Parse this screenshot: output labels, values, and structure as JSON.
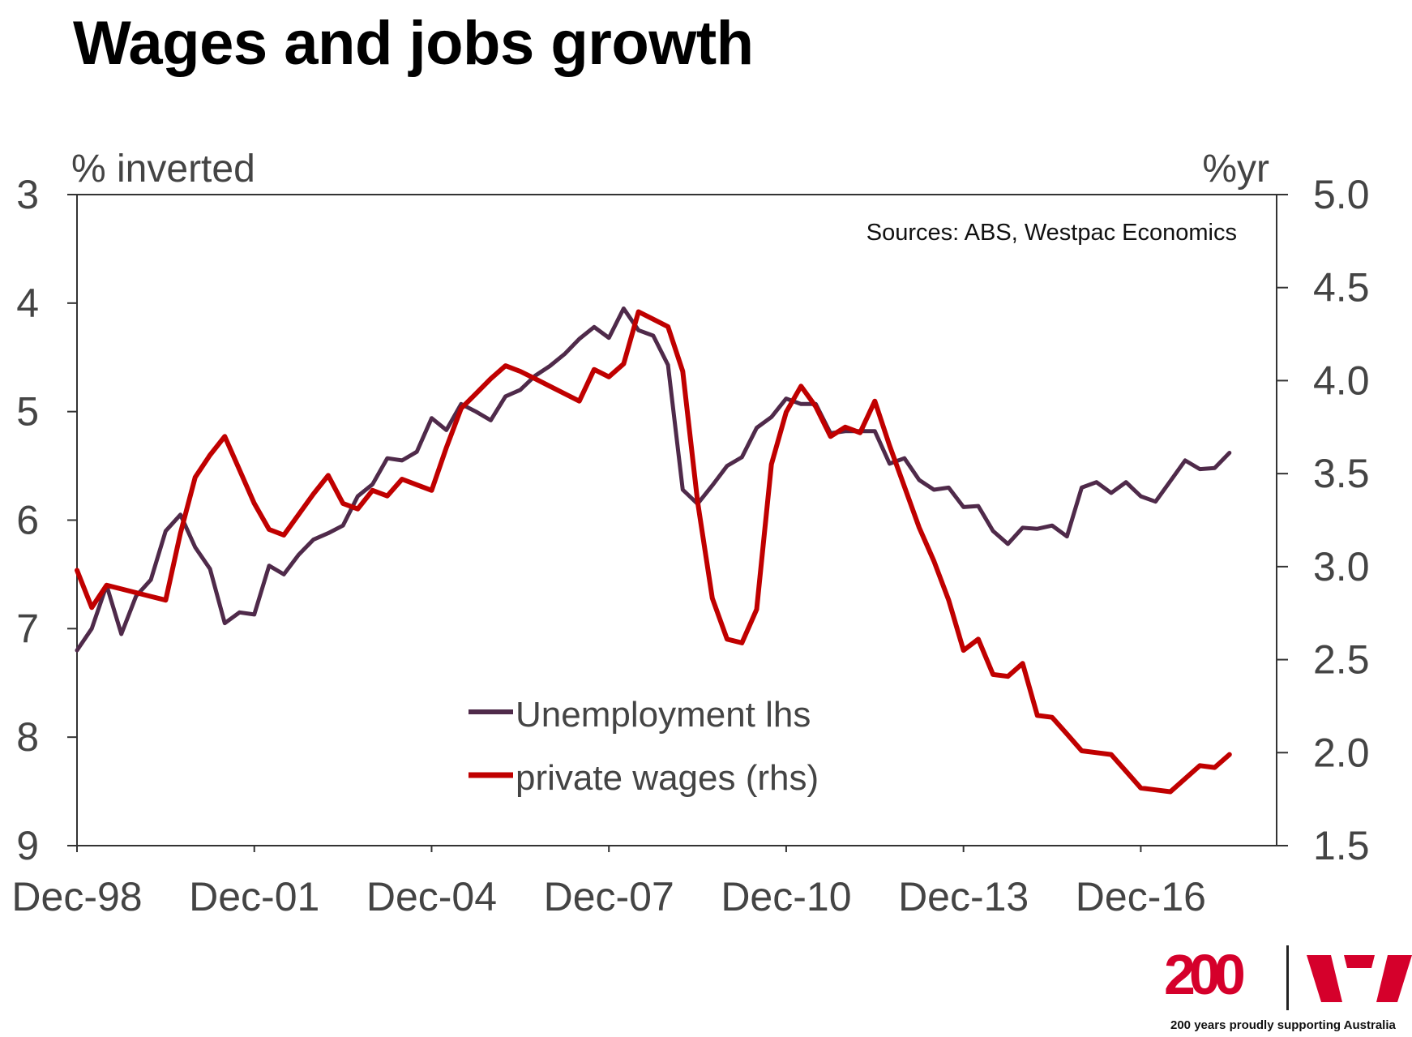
{
  "slide": {
    "title": "Wages and jobs growth",
    "sources": "Sources: ABS, Westpac Economics"
  },
  "branding": {
    "anniversary": "200",
    "tagline": "200 years proudly supporting Australia",
    "logo_icon": "westpac-w-logo",
    "brand_color": "#d5002b"
  },
  "chart_data": {
    "type": "line",
    "xlabel": "",
    "x_tick_labels": [
      "Dec-98",
      "Dec-01",
      "Dec-04",
      "Dec-07",
      "Dec-10",
      "Dec-13",
      "Dec-16"
    ],
    "x_range": [
      "1998-12",
      "2018-09"
    ],
    "y_left": {
      "label": "% inverted",
      "ylim": [
        3,
        9
      ],
      "inverted": true,
      "ticks": [
        3,
        4,
        5,
        6,
        7,
        8,
        9
      ]
    },
    "y_right": {
      "label": "%yr",
      "ylim": [
        1.5,
        5.0
      ],
      "ticks": [
        "1.5",
        "2.0",
        "2.5",
        "3.0",
        "3.5",
        "4.0",
        "4.5",
        "5.0"
      ]
    },
    "grid": false,
    "legend_position": "bottom-center",
    "series": [
      {
        "name": "Unemployment lhs",
        "axis": "left",
        "color": "#4f2a4a",
        "points": [
          [
            "1998-12",
            7.2
          ],
          [
            "1999-03",
            7.0
          ],
          [
            "1999-06",
            6.6
          ],
          [
            "1999-09",
            7.05
          ],
          [
            "1999-12",
            6.7
          ],
          [
            "2000-03",
            6.55
          ],
          [
            "2000-06",
            6.1
          ],
          [
            "2000-09",
            5.95
          ],
          [
            "2000-12",
            6.25
          ],
          [
            "2001-03",
            6.45
          ],
          [
            "2001-06",
            6.95
          ],
          [
            "2001-09",
            6.85
          ],
          [
            "2001-12",
            6.87
          ],
          [
            "2002-03",
            6.42
          ],
          [
            "2002-06",
            6.5
          ],
          [
            "2002-09",
            6.32
          ],
          [
            "2002-12",
            6.18
          ],
          [
            "2003-03",
            6.12
          ],
          [
            "2003-06",
            6.05
          ],
          [
            "2003-09",
            5.78
          ],
          [
            "2003-12",
            5.67
          ],
          [
            "2004-03",
            5.43
          ],
          [
            "2004-06",
            5.45
          ],
          [
            "2004-09",
            5.37
          ],
          [
            "2004-12",
            5.06
          ],
          [
            "2005-03",
            5.17
          ],
          [
            "2005-06",
            4.93
          ],
          [
            "2005-09",
            5.0
          ],
          [
            "2005-12",
            5.08
          ],
          [
            "2006-03",
            4.86
          ],
          [
            "2006-06",
            4.8
          ],
          [
            "2006-09",
            4.67
          ],
          [
            "2006-12",
            4.58
          ],
          [
            "2007-03",
            4.47
          ],
          [
            "2007-06",
            4.33
          ],
          [
            "2007-09",
            4.22
          ],
          [
            "2007-12",
            4.32
          ],
          [
            "2008-03",
            4.05
          ],
          [
            "2008-06",
            4.25
          ],
          [
            "2008-09",
            4.3
          ],
          [
            "2008-12",
            4.57
          ],
          [
            "2009-03",
            5.72
          ],
          [
            "2009-06",
            5.85
          ],
          [
            "2009-09",
            5.68
          ],
          [
            "2009-12",
            5.5
          ],
          [
            "2010-03",
            5.42
          ],
          [
            "2010-06",
            5.15
          ],
          [
            "2010-09",
            5.05
          ],
          [
            "2010-12",
            4.88
          ],
          [
            "2011-03",
            4.93
          ],
          [
            "2011-06",
            4.93
          ],
          [
            "2011-09",
            5.2
          ],
          [
            "2011-12",
            5.18
          ],
          [
            "2012-03",
            5.18
          ],
          [
            "2012-06",
            5.18
          ],
          [
            "2012-09",
            5.48
          ],
          [
            "2012-12",
            5.43
          ],
          [
            "2013-03",
            5.63
          ],
          [
            "2013-06",
            5.72
          ],
          [
            "2013-09",
            5.7
          ],
          [
            "2013-12",
            5.88
          ],
          [
            "2014-03",
            5.87
          ],
          [
            "2014-06",
            6.1
          ],
          [
            "2014-09",
            6.22
          ],
          [
            "2014-12",
            6.07
          ],
          [
            "2015-03",
            6.08
          ],
          [
            "2015-06",
            6.05
          ],
          [
            "2015-09",
            6.15
          ],
          [
            "2015-12",
            5.7
          ],
          [
            "2016-03",
            5.65
          ],
          [
            "2016-06",
            5.75
          ],
          [
            "2016-09",
            5.65
          ],
          [
            "2016-12",
            5.78
          ],
          [
            "2017-03",
            5.83
          ],
          [
            "2017-06",
            5.64
          ],
          [
            "2017-09",
            5.45
          ],
          [
            "2017-12",
            5.53
          ],
          [
            "2018-03",
            5.52
          ],
          [
            "2018-06",
            5.38
          ]
        ]
      },
      {
        "name": "private wages (rhs)",
        "axis": "right",
        "color": "#c00000",
        "points": [
          [
            "1998-12",
            2.98
          ],
          [
            "1999-03",
            2.78
          ],
          [
            "1999-06",
            2.9
          ],
          [
            "1999-09",
            2.88
          ],
          [
            "1999-12",
            2.86
          ],
          [
            "2000-03",
            2.84
          ],
          [
            "2000-06",
            2.82
          ],
          [
            "2000-09",
            3.18
          ],
          [
            "2000-12",
            3.48
          ],
          [
            "2001-03",
            3.6
          ],
          [
            "2001-06",
            3.7
          ],
          [
            "2001-09",
            3.52
          ],
          [
            "2001-12",
            3.34
          ],
          [
            "2002-03",
            3.2
          ],
          [
            "2002-06",
            3.17
          ],
          [
            "2002-09",
            3.28
          ],
          [
            "2002-12",
            3.39
          ],
          [
            "2003-03",
            3.49
          ],
          [
            "2003-06",
            3.34
          ],
          [
            "2003-09",
            3.31
          ],
          [
            "2003-12",
            3.41
          ],
          [
            "2004-03",
            3.38
          ],
          [
            "2004-06",
            3.47
          ],
          [
            "2004-09",
            3.44
          ],
          [
            "2004-12",
            3.41
          ],
          [
            "2005-03",
            3.64
          ],
          [
            "2005-06",
            3.85
          ],
          [
            "2005-09",
            3.93
          ],
          [
            "2005-12",
            4.01
          ],
          [
            "2006-03",
            4.08
          ],
          [
            "2006-06",
            4.05
          ],
          [
            "2006-09",
            4.01
          ],
          [
            "2006-12",
            3.97
          ],
          [
            "2007-03",
            3.93
          ],
          [
            "2007-06",
            3.89
          ],
          [
            "2007-09",
            4.06
          ],
          [
            "2007-12",
            4.02
          ],
          [
            "2008-03",
            4.09
          ],
          [
            "2008-06",
            4.37
          ],
          [
            "2008-09",
            4.33
          ],
          [
            "2008-12",
            4.29
          ],
          [
            "2009-03",
            4.05
          ],
          [
            "2009-06",
            3.35
          ],
          [
            "2009-09",
            2.83
          ],
          [
            "2009-12",
            2.61
          ],
          [
            "2010-03",
            2.59
          ],
          [
            "2010-06",
            2.77
          ],
          [
            "2010-09",
            3.55
          ],
          [
            "2010-12",
            3.83
          ],
          [
            "2011-03",
            3.97
          ],
          [
            "2011-06",
            3.86
          ],
          [
            "2011-09",
            3.7
          ],
          [
            "2011-12",
            3.75
          ],
          [
            "2012-03",
            3.72
          ],
          [
            "2012-06",
            3.89
          ],
          [
            "2012-09",
            3.65
          ],
          [
            "2012-12",
            3.43
          ],
          [
            "2013-03",
            3.21
          ],
          [
            "2013-06",
            3.03
          ],
          [
            "2013-09",
            2.82
          ],
          [
            "2013-12",
            2.55
          ],
          [
            "2014-03",
            2.61
          ],
          [
            "2014-06",
            2.42
          ],
          [
            "2014-09",
            2.41
          ],
          [
            "2014-12",
            2.48
          ],
          [
            "2015-03",
            2.2
          ],
          [
            "2015-06",
            2.19
          ],
          [
            "2015-09",
            2.1
          ],
          [
            "2015-12",
            2.01
          ],
          [
            "2016-03",
            2.0
          ],
          [
            "2016-06",
            1.99
          ],
          [
            "2016-09",
            1.9
          ],
          [
            "2016-12",
            1.81
          ],
          [
            "2017-03",
            1.8
          ],
          [
            "2017-06",
            1.79
          ],
          [
            "2017-09",
            1.86
          ],
          [
            "2017-12",
            1.93
          ],
          [
            "2018-03",
            1.92
          ],
          [
            "2018-06",
            1.99
          ]
        ]
      }
    ]
  }
}
